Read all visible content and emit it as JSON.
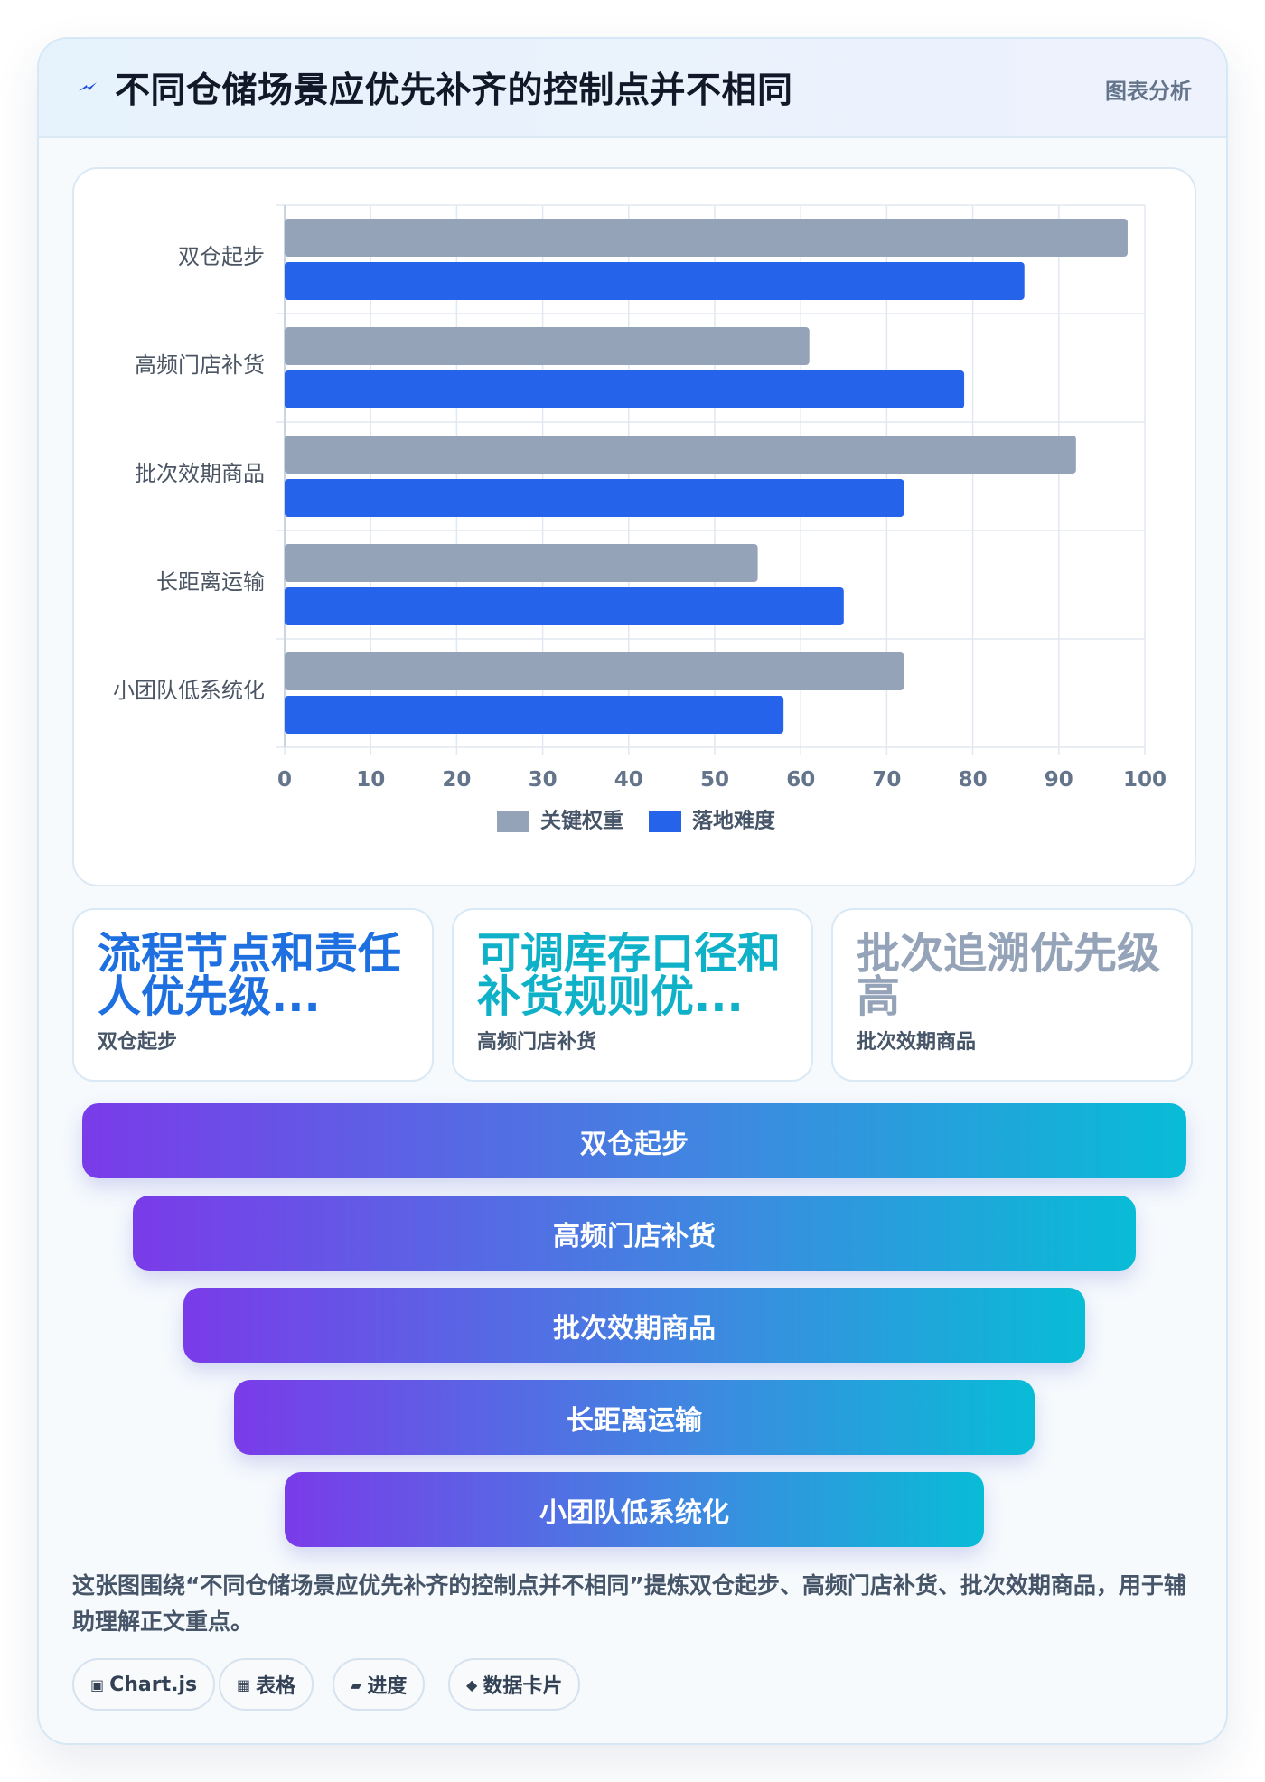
{
  "header": {
    "title": "不同仓储场景应优先补齐的控制点并不相同",
    "tag": "图表分析",
    "icon": "lightning-icon"
  },
  "chart_data": {
    "type": "bar",
    "orientation": "horizontal",
    "categories": [
      "双仓起步",
      "高频门店补货",
      "批次效期商品",
      "长距离运输",
      "小团队低系统化"
    ],
    "series": [
      {
        "name": "关键权重",
        "values": [
          98,
          61,
          92,
          55,
          72
        ],
        "color": "#94a3b8"
      },
      {
        "name": "落地难度",
        "values": [
          86,
          79,
          72,
          65,
          58
        ],
        "color": "#2563eb"
      }
    ],
    "xlim": [
      0,
      100
    ],
    "xticks": [
      "0",
      "10",
      "20",
      "30",
      "40",
      "50",
      "60",
      "70",
      "80",
      "90",
      "100"
    ],
    "grid": true,
    "legend_position": "bottom"
  },
  "stats": [
    {
      "value": "流程节点和责任人优先级...",
      "label": "双仓起步",
      "color": "#1e6fe0"
    },
    {
      "value": "可调库存口径和补货规则优...",
      "label": "高频门店补货",
      "color": "#0fb1c9"
    },
    {
      "value": "批次追溯优先级高",
      "label": "批次效期商品",
      "color": "#94a3b8"
    }
  ],
  "funnel": [
    "双仓起步",
    "高频门店补货",
    "批次效期商品",
    "长距离运输",
    "小团队低系统化"
  ],
  "description": "这张图围绕“不同仓储场景应优先补齐的控制点并不相同”提炼双仓起步、高频门店补货、批次效期商品，用于辅助理解正文重点。",
  "pills": [
    {
      "icon": "▣",
      "label": "Chart.js"
    },
    {
      "icon": "▦",
      "label": "表格"
    },
    {
      "icon": "▰",
      "label": "进度"
    },
    {
      "icon": "◆",
      "label": "数据卡片"
    }
  ]
}
